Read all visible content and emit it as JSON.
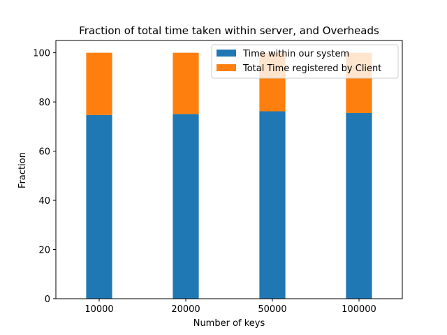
{
  "chart_data": {
    "type": "bar",
    "stacked": true,
    "title": "Fraction of total time taken within server, and Overheads",
    "xlabel": "Number of keys",
    "ylabel": "Fraction",
    "categories": [
      "10000",
      "20000",
      "50000",
      "100000"
    ],
    "ylim": [
      0,
      100
    ],
    "yticks": [
      0,
      20,
      40,
      60,
      80,
      100
    ],
    "grid": false,
    "legend_position": "top-right",
    "series": [
      {
        "name": "Time within our system",
        "color": "#1f77b4",
        "values": [
          74.7,
          75.1,
          76.2,
          75.5
        ]
      },
      {
        "name": "Total Time registered by Client",
        "color": "#ff7f0e",
        "values": [
          25.3,
          24.9,
          23.8,
          24.5
        ]
      }
    ]
  }
}
